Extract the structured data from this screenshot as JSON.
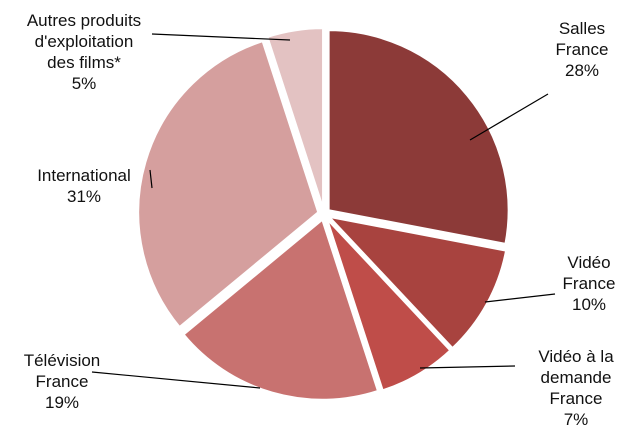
{
  "chart_data": {
    "type": "pie",
    "title": "",
    "slices": [
      {
        "label_lines": [
          "Salles",
          "France",
          "28%"
        ],
        "value": 28,
        "color": "#8c3a38"
      },
      {
        "label_lines": [
          "Vidéo",
          "France",
          "10%"
        ],
        "value": 10,
        "color": "#a8433f"
      },
      {
        "label_lines": [
          "Vidéo à la",
          "demande",
          "France",
          "7%"
        ],
        "value": 7,
        "color": "#bf4d49"
      },
      {
        "label_lines": [
          "Télévision",
          "France",
          "19%"
        ],
        "value": 19,
        "color": "#c87270"
      },
      {
        "label_lines": [
          "International",
          "31%"
        ],
        "value": 31,
        "color": "#d59f9e"
      },
      {
        "label_lines": [
          "Autres produits",
          "d'exploitation",
          "des films*",
          "5%"
        ],
        "value": 5,
        "color": "#e3c2c2"
      }
    ]
  }
}
